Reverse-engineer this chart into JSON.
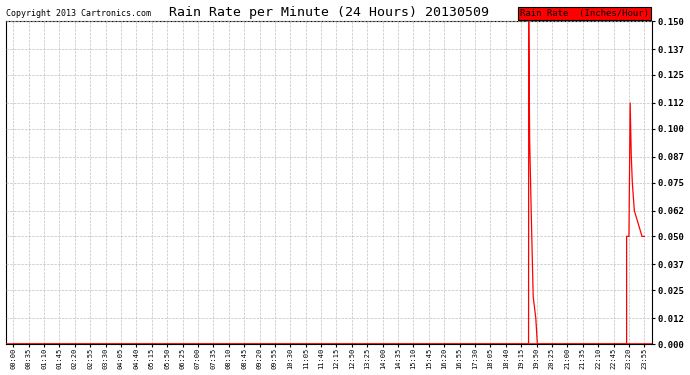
{
  "title": "Rain Rate per Minute (24 Hours) 20130509",
  "copyright": "Copyright 2013 Cartronics.com",
  "legend_label": "Rain Rate  (Inches/Hour)",
  "ylabel_ticks": [
    0.0,
    0.012,
    0.025,
    0.037,
    0.05,
    0.062,
    0.075,
    0.087,
    0.1,
    0.112,
    0.125,
    0.137,
    0.15
  ],
  "ylim": [
    0.0,
    0.15
  ],
  "background_color": "#ffffff",
  "plot_bg_color": "#ffffff",
  "line_color": "#ff0000",
  "grid_color": "#c0c0c0",
  "x_tick_labels": [
    "00:00",
    "00:35",
    "01:10",
    "01:45",
    "02:20",
    "02:55",
    "03:30",
    "04:05",
    "04:40",
    "05:15",
    "05:50",
    "06:25",
    "07:00",
    "07:35",
    "08:10",
    "08:45",
    "09:20",
    "09:55",
    "10:30",
    "11:05",
    "11:40",
    "12:15",
    "12:50",
    "13:25",
    "14:00",
    "14:35",
    "15:10",
    "15:45",
    "16:20",
    "16:55",
    "17:30",
    "18:05",
    "18:40",
    "19:15",
    "19:50",
    "20:25",
    "21:00",
    "21:35",
    "22:10",
    "22:45",
    "23:20",
    "23:55"
  ],
  "signal_x": [
    0,
    33.48,
    33.49,
    33.55,
    33.65,
    33.78,
    33.95,
    34.05,
    34.05,
    39.85,
    39.85,
    40.0,
    40.08,
    40.08,
    40.15,
    40.15,
    40.22,
    40.22,
    40.35,
    40.35,
    40.85,
    40.85,
    41.0
  ],
  "signal_y": [
    0.0,
    0.0,
    0.15,
    0.095,
    0.062,
    0.022,
    0.012,
    0.0,
    0.0,
    0.0,
    0.05,
    0.05,
    0.112,
    0.112,
    0.088,
    0.088,
    0.075,
    0.075,
    0.062,
    0.062,
    0.05,
    0.05,
    0.05
  ],
  "num_ticks": 42,
  "figsize": [
    6.9,
    3.75
  ],
  "dpi": 100
}
